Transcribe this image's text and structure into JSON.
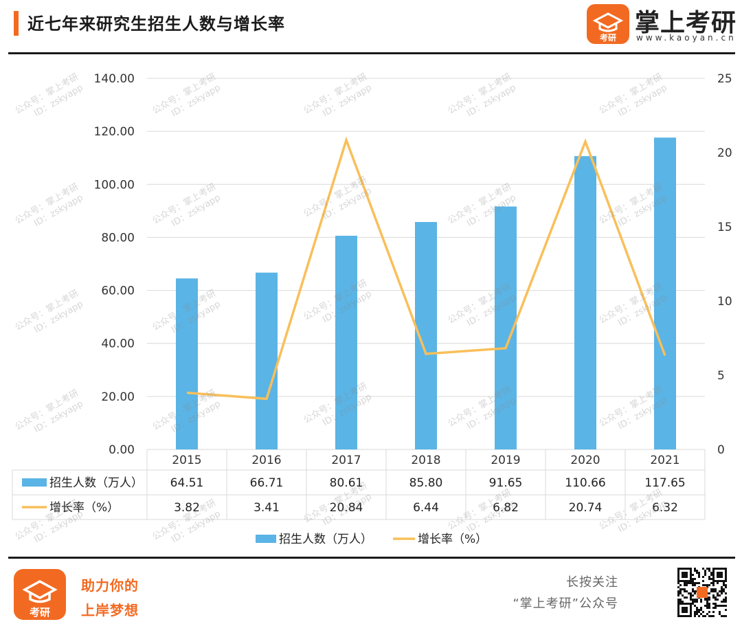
{
  "header": {
    "title": "近七年来研究生招生人数与增长率",
    "brand_name": "掌上考研",
    "brand_domain": "www.kaoyan.cn",
    "logo_text": "考研"
  },
  "watermark": {
    "line1": "公众号：掌上考研",
    "line2": "ID：zskyapp"
  },
  "colors": {
    "accent": "#f26a21",
    "bar": "#5ab4e5",
    "line": "#f9bf5a"
  },
  "chart_data": {
    "type": "bar",
    "categories": [
      "2015",
      "2016",
      "2017",
      "2018",
      "2019",
      "2020",
      "2021"
    ],
    "series": [
      {
        "name": "招生人数（万人）",
        "type": "bar",
        "axis": "left",
        "values": [
          64.51,
          66.71,
          80.61,
          85.8,
          91.65,
          110.66,
          117.65
        ],
        "labels": [
          "64.51",
          "66.71",
          "80.61",
          "85.80",
          "91.65",
          "110.66",
          "117.65"
        ]
      },
      {
        "name": "增长率（%）",
        "type": "line",
        "axis": "right",
        "values": [
          3.82,
          3.41,
          20.84,
          6.44,
          6.82,
          20.74,
          6.32
        ],
        "labels": [
          "3.82",
          "3.41",
          "20.84",
          "6.44",
          "6.82",
          "20.74",
          "6.32"
        ]
      }
    ],
    "ylim_left": [
      0,
      140
    ],
    "yticks_left": [
      "0.00",
      "20.00",
      "40.00",
      "60.00",
      "80.00",
      "100.00",
      "120.00",
      "140.00"
    ],
    "ylim_right": [
      0,
      25
    ],
    "yticks_right": [
      "0",
      "5",
      "10",
      "15",
      "20",
      "25"
    ],
    "grid": true,
    "data_table": true,
    "legend": "bottom"
  },
  "footer": {
    "slogan_line1": "助力你的",
    "slogan_line2": "上岸梦想",
    "follow_line1": "长按关注",
    "follow_line2": "“掌上考研”公众号",
    "logo_text": "考研"
  }
}
